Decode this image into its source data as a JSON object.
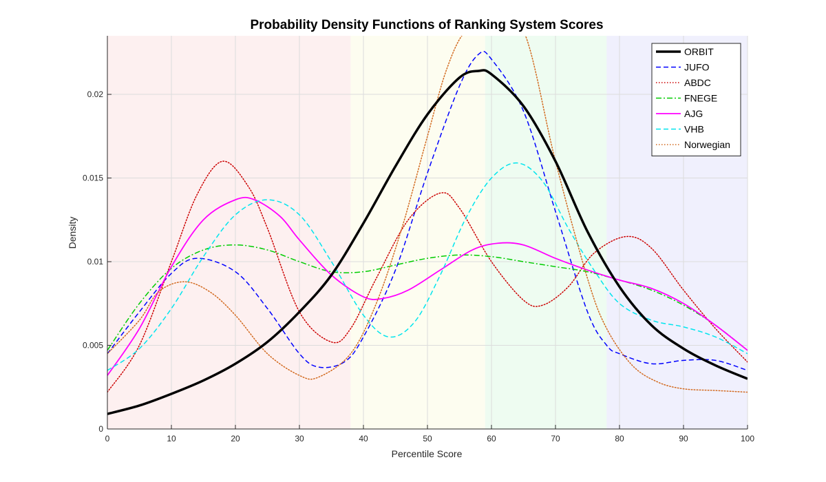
{
  "chart_data": {
    "type": "line",
    "title": "Probability Density Functions of Ranking System Scores",
    "xlabel": "Percentile Score",
    "ylabel": "Density",
    "xlim": [
      0,
      100
    ],
    "ylim": [
      0,
      0.0235
    ],
    "xticks": [
      0,
      10,
      20,
      30,
      40,
      50,
      60,
      70,
      80,
      90,
      100
    ],
    "yticks": [
      0,
      0.005,
      0.01,
      0.015,
      0.02
    ],
    "ytick_labels": [
      "0",
      "0.005",
      "0.01",
      "0.015",
      "0.02"
    ],
    "grid": true,
    "legend_position": "top-right",
    "background_bands": [
      {
        "from": 0,
        "to": 38,
        "color": "#fdf0f0"
      },
      {
        "from": 38,
        "to": 59,
        "color": "#fdfdf0"
      },
      {
        "from": 59,
        "to": 78,
        "color": "#eefcf1"
      },
      {
        "from": 78,
        "to": 100,
        "color": "#f0f0fd"
      }
    ],
    "series": [
      {
        "name": "ORBIT",
        "color": "#000000",
        "dash": "solid",
        "width": 3.5,
        "x": [
          0,
          5,
          10,
          15,
          20,
          25,
          30,
          35,
          40,
          45,
          50,
          55,
          58,
          60,
          65,
          70,
          75,
          80,
          85,
          90,
          95,
          100
        ],
        "y": [
          0.0009,
          0.0014,
          0.0021,
          0.0029,
          0.0039,
          0.0052,
          0.007,
          0.0092,
          0.0123,
          0.0157,
          0.0188,
          0.021,
          0.0214,
          0.0212,
          0.0193,
          0.016,
          0.0118,
          0.0085,
          0.0062,
          0.0048,
          0.0038,
          0.003
        ]
      },
      {
        "name": "JUFO",
        "color": "#0000ff",
        "dash": "dashed",
        "width": 1.5,
        "x": [
          0,
          5,
          10,
          14,
          20,
          25,
          30,
          33,
          37,
          40,
          45,
          50,
          55,
          58,
          60,
          65,
          70,
          75,
          78,
          80,
          85,
          90,
          95,
          100
        ],
        "y": [
          0.0045,
          0.007,
          0.0093,
          0.0102,
          0.0094,
          0.0072,
          0.0045,
          0.0037,
          0.004,
          0.0055,
          0.0095,
          0.0153,
          0.0205,
          0.0224,
          0.0221,
          0.019,
          0.013,
          0.007,
          0.005,
          0.0045,
          0.0039,
          0.0041,
          0.0041,
          0.0035
        ]
      },
      {
        "name": "ABDC",
        "color": "#cc0000",
        "dash": "dotted",
        "width": 1.5,
        "x": [
          0,
          5,
          10,
          14,
          18,
          22,
          25,
          30,
          35,
          38,
          42,
          47,
          52,
          55,
          60,
          65,
          68,
          72,
          76,
          81,
          85,
          90,
          95,
          100
        ],
        "y": [
          0.0022,
          0.005,
          0.01,
          0.014,
          0.016,
          0.0145,
          0.012,
          0.007,
          0.0052,
          0.006,
          0.009,
          0.0125,
          0.0141,
          0.0132,
          0.01,
          0.0077,
          0.0074,
          0.0085,
          0.0105,
          0.0115,
          0.0108,
          0.0083,
          0.006,
          0.004
        ]
      },
      {
        "name": "FNEGE",
        "color": "#00cc00",
        "dash": "dashdot",
        "width": 1.5,
        "x": [
          0,
          5,
          10,
          15,
          20,
          25,
          30,
          35,
          40,
          45,
          50,
          55,
          60,
          65,
          70,
          75,
          80,
          85,
          90,
          95,
          100
        ],
        "y": [
          0.0047,
          0.0075,
          0.0096,
          0.0107,
          0.011,
          0.0107,
          0.01,
          0.0094,
          0.0094,
          0.0098,
          0.0102,
          0.0104,
          0.0103,
          0.01,
          0.0097,
          0.0094,
          0.0089,
          0.0083,
          0.0074,
          0.0062,
          0.0047
        ]
      },
      {
        "name": "AJG",
        "color": "#ff00ff",
        "dash": "solid",
        "width": 1.8,
        "x": [
          0,
          5,
          10,
          15,
          20,
          23,
          27,
          30,
          35,
          40,
          43,
          47,
          52,
          57,
          61,
          65,
          70,
          75,
          80,
          85,
          90,
          95,
          100
        ],
        "y": [
          0.0032,
          0.006,
          0.0097,
          0.0125,
          0.0137,
          0.0137,
          0.0127,
          0.0113,
          0.0092,
          0.0079,
          0.0078,
          0.0083,
          0.0095,
          0.0107,
          0.0111,
          0.011,
          0.0102,
          0.0095,
          0.0089,
          0.0084,
          0.0075,
          0.0062,
          0.0047
        ]
      },
      {
        "name": "VHB",
        "color": "#00e5ee",
        "dash": "dashed",
        "width": 1.5,
        "x": [
          0,
          5,
          10,
          15,
          20,
          25,
          30,
          35,
          40,
          44,
          48,
          52,
          56,
          60,
          64,
          68,
          72,
          76,
          80,
          85,
          90,
          95,
          100
        ],
        "y": [
          0.0035,
          0.0048,
          0.0072,
          0.0103,
          0.0128,
          0.0137,
          0.0128,
          0.01,
          0.0068,
          0.0055,
          0.0064,
          0.0092,
          0.0126,
          0.015,
          0.0159,
          0.0148,
          0.012,
          0.0095,
          0.0075,
          0.0065,
          0.0061,
          0.0055,
          0.0045
        ]
      },
      {
        "name": "Norwegian",
        "color": "#d2691e",
        "dash": "dotted",
        "width": 1.5,
        "x": [
          0,
          5,
          8,
          12,
          16,
          20,
          25,
          30,
          33,
          38,
          42,
          46,
          50,
          53,
          56,
          60,
          65,
          70,
          75,
          78,
          82,
          86,
          90,
          95,
          100
        ],
        "y": [
          0.0045,
          0.0065,
          0.0082,
          0.0088,
          0.0082,
          0.0068,
          0.0045,
          0.0032,
          0.0031,
          0.0045,
          0.0075,
          0.012,
          0.0175,
          0.0215,
          0.0238,
          0.0242,
          0.0238,
          0.016,
          0.009,
          0.006,
          0.0038,
          0.0028,
          0.0024,
          0.0023,
          0.0022
        ]
      }
    ]
  }
}
